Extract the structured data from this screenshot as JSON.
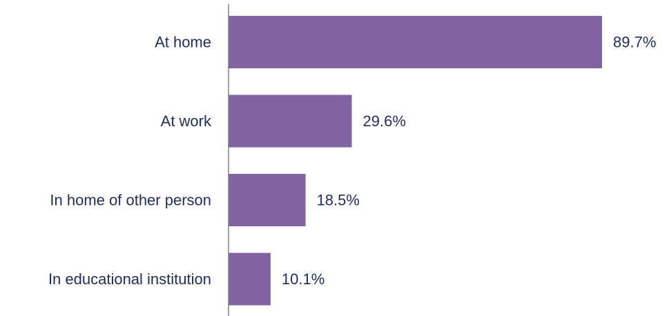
{
  "chart_data": {
    "type": "bar",
    "orientation": "horizontal",
    "categories": [
      "At home",
      "At work",
      "In home of other person",
      "In educational institution"
    ],
    "values": [
      89.7,
      29.6,
      18.5,
      10.1
    ],
    "value_labels": [
      "89.7%",
      "29.6%",
      "18.5%",
      "10.1%"
    ],
    "unit": "%",
    "title": "",
    "xlabel": "",
    "ylabel": "",
    "grid": false,
    "legend": "none",
    "colors": {
      "bar": "#8064A2",
      "text": "#1F2D5A",
      "axis": "#808080"
    }
  }
}
